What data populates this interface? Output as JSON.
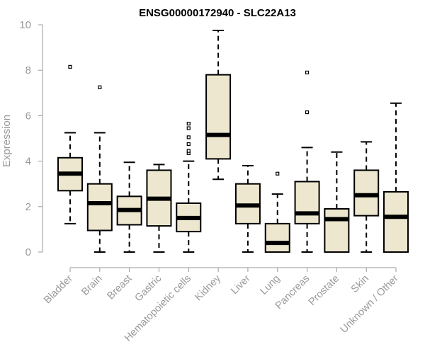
{
  "chart_data": {
    "type": "box",
    "title": "ENSG00000172940 - SLC22A13",
    "xlabel": "",
    "ylabel": "Expression",
    "ylim": [
      0,
      10
    ],
    "yticks": [
      0,
      2,
      4,
      6,
      8,
      10
    ],
    "colors": {
      "box_fill": "#ede7cf",
      "stroke": "#000000",
      "axis": "#999999"
    },
    "categories": [
      "Bladder",
      "Brain",
      "Breast",
      "Gastric",
      "Hematopoietic cells",
      "Kidney",
      "Liver",
      "Lung",
      "Pancreas",
      "Prostate",
      "Skin",
      "Unknown / Other"
    ],
    "boxes": [
      {
        "label": "Bladder",
        "whisker_low": 1.25,
        "q1": 2.7,
        "median": 3.45,
        "q3": 4.15,
        "whisker_high": 5.25,
        "outliers": [
          8.15
        ]
      },
      {
        "label": "Brain",
        "whisker_low": 0,
        "q1": 0.95,
        "median": 2.15,
        "q3": 3.0,
        "whisker_high": 5.25,
        "outliers": [
          7.25
        ]
      },
      {
        "label": "Breast",
        "whisker_low": 0,
        "q1": 1.2,
        "median": 1.85,
        "q3": 2.45,
        "whisker_high": 3.95,
        "outliers": []
      },
      {
        "label": "Gastric",
        "whisker_low": 0,
        "q1": 1.15,
        "median": 2.35,
        "q3": 3.6,
        "whisker_high": 3.85,
        "outliers": []
      },
      {
        "label": "Hematopoietic cells",
        "whisker_low": 0,
        "q1": 0.9,
        "median": 1.5,
        "q3": 2.15,
        "whisker_high": 4.0,
        "outliers": [
          4.35,
          4.45,
          4.75,
          5.05,
          5.45,
          5.65
        ]
      },
      {
        "label": "Kidney",
        "whisker_low": 3.2,
        "q1": 4.1,
        "median": 5.15,
        "q3": 7.8,
        "whisker_high": 9.75,
        "outliers": []
      },
      {
        "label": "Liver",
        "whisker_low": 0,
        "q1": 1.25,
        "median": 2.05,
        "q3": 3.0,
        "whisker_high": 3.8,
        "outliers": []
      },
      {
        "label": "Lung",
        "whisker_low": 0,
        "q1": 0,
        "median": 0.4,
        "q3": 1.25,
        "whisker_high": 2.55,
        "outliers": [
          3.45
        ]
      },
      {
        "label": "Pancreas",
        "whisker_low": 0,
        "q1": 1.25,
        "median": 1.7,
        "q3": 3.1,
        "whisker_high": 4.6,
        "outliers": [
          6.15,
          7.9
        ]
      },
      {
        "label": "Prostate",
        "whisker_low": 0,
        "q1": 0,
        "median": 1.45,
        "q3": 1.9,
        "whisker_high": 4.4,
        "outliers": []
      },
      {
        "label": "Skin",
        "whisker_low": 0,
        "q1": 1.6,
        "median": 2.5,
        "q3": 3.6,
        "whisker_high": 4.85,
        "outliers": []
      },
      {
        "label": "Unknown / Other",
        "whisker_low": 0,
        "q1": 0,
        "median": 1.55,
        "q3": 2.65,
        "whisker_high": 6.55,
        "outliers": []
      }
    ]
  }
}
